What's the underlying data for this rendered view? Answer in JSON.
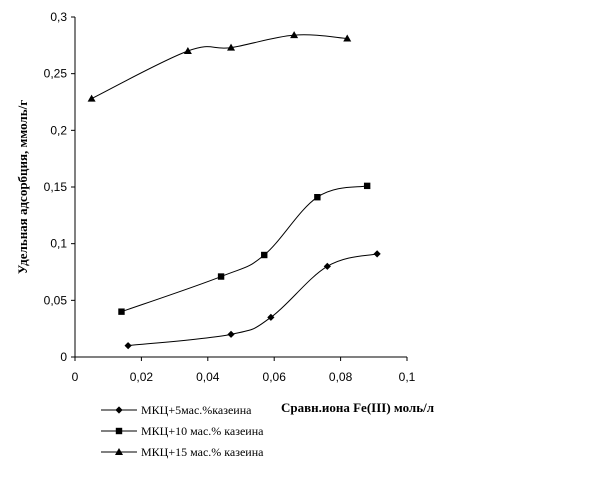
{
  "chart_data": {
    "type": "line",
    "title": "",
    "xlabel": "Сравн.иона Fe(III) моль/л",
    "ylabel": "Удельная адсорбция, ммоль/г",
    "xlim": [
      0,
      0.1
    ],
    "ylim": [
      0,
      0.3
    ],
    "x_ticks": [
      "0",
      "0,02",
      "0,04",
      "0,06",
      "0,08",
      "0,1"
    ],
    "y_ticks": [
      "0",
      "0,05",
      "0,1",
      "0,15",
      "0,2",
      "0,25",
      "0,3"
    ],
    "grid": false,
    "legend_position": "bottom-left",
    "series": [
      {
        "name": "МКЦ+5мас.%казеина",
        "marker": "diamond",
        "x": [
          0.016,
          0.047,
          0.059,
          0.076,
          0.091
        ],
        "y": [
          0.01,
          0.02,
          0.035,
          0.08,
          0.091
        ]
      },
      {
        "name": "МКЦ+10 мас.% казеина",
        "marker": "square",
        "x": [
          0.014,
          0.044,
          0.057,
          0.073,
          0.088
        ],
        "y": [
          0.04,
          0.071,
          0.09,
          0.141,
          0.151
        ]
      },
      {
        "name": "МКЦ+15 мас.% казеина",
        "marker": "triangle",
        "x": [
          0.005,
          0.034,
          0.047,
          0.066,
          0.082
        ],
        "y": [
          0.228,
          0.27,
          0.273,
          0.284,
          0.281
        ]
      }
    ],
    "line_color": "#000000"
  }
}
